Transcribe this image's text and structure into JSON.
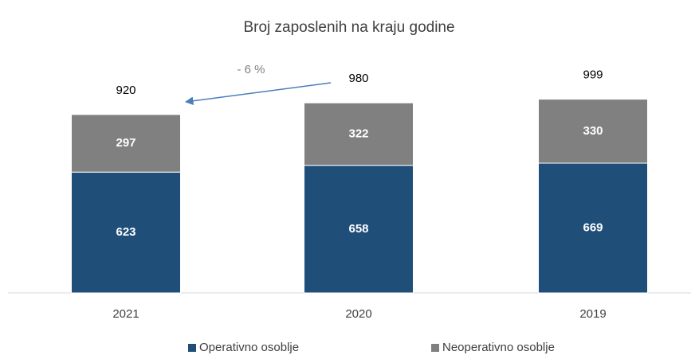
{
  "chart_data": {
    "type": "stacked-bar",
    "title": "Broj zaposlenih na kraju godine",
    "categories": [
      "2021",
      "2020",
      "2019"
    ],
    "series": [
      {
        "name": "Operativno osoblje",
        "color": "#1f4e79",
        "values": [
          623,
          658,
          669
        ]
      },
      {
        "name": "Neoperativno osoblje",
        "color": "#808080",
        "values": [
          297,
          322,
          330
        ]
      }
    ],
    "totals": [
      920,
      980,
      999
    ],
    "annotation": "- 6 %",
    "ylim": [
      0,
      1100
    ]
  }
}
